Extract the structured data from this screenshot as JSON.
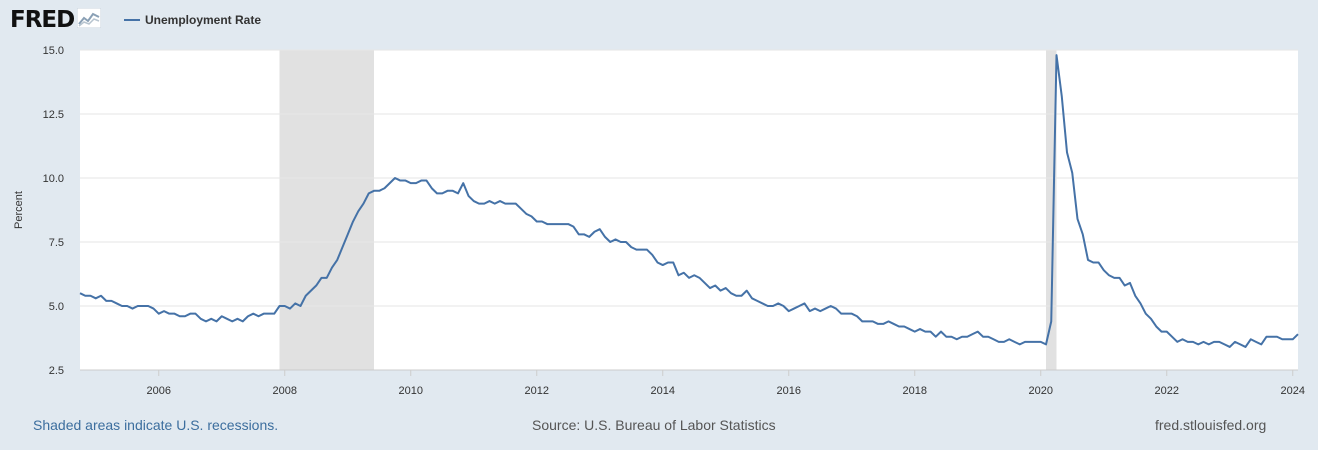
{
  "header": {
    "logo_text": "FRED",
    "logo_icon": "line-chart-icon",
    "legend_label": "Unemployment Rate",
    "series_color": "#4572a7"
  },
  "footer": {
    "recession_note": "Shaded areas indicate U.S. recessions.",
    "source": "Source: U.S. Bureau of Labor Statistics",
    "site": "fred.stlouisfed.org"
  },
  "chart_data": {
    "type": "line",
    "title": "",
    "xlabel": "",
    "ylabel": "Percent",
    "ylim": [
      2.5,
      15.0
    ],
    "yticks": [
      "15.0",
      "12.5",
      "10.0",
      "7.5",
      "5.0",
      "2.5"
    ],
    "xticks": [
      "2006",
      "2008",
      "2010",
      "2012",
      "2014",
      "2016",
      "2018",
      "2020",
      "2022",
      "2024"
    ],
    "xlim": [
      "2004-10",
      "2024-02"
    ],
    "grid": true,
    "legend": "top-left",
    "recessions": [
      [
        "2007-12",
        "2009-06"
      ],
      [
        "2020-02",
        "2020-04"
      ]
    ],
    "series": [
      {
        "name": "Unemployment Rate",
        "color": "#4572a7",
        "start": "2004-10",
        "frequency": "monthly",
        "values": [
          5.5,
          5.4,
          5.4,
          5.3,
          5.4,
          5.2,
          5.2,
          5.1,
          5.0,
          5.0,
          4.9,
          5.0,
          5.0,
          5.0,
          4.9,
          4.7,
          4.8,
          4.7,
          4.7,
          4.6,
          4.6,
          4.7,
          4.7,
          4.5,
          4.4,
          4.5,
          4.4,
          4.6,
          4.5,
          4.4,
          4.5,
          4.4,
          4.6,
          4.7,
          4.6,
          4.7,
          4.7,
          4.7,
          5.0,
          5.0,
          4.9,
          5.1,
          5.0,
          5.4,
          5.6,
          5.8,
          6.1,
          6.1,
          6.5,
          6.8,
          7.3,
          7.8,
          8.3,
          8.7,
          9.0,
          9.4,
          9.5,
          9.5,
          9.6,
          9.8,
          10.0,
          9.9,
          9.9,
          9.8,
          9.8,
          9.9,
          9.9,
          9.6,
          9.4,
          9.4,
          9.5,
          9.5,
          9.4,
          9.8,
          9.3,
          9.1,
          9.0,
          9.0,
          9.1,
          9.0,
          9.1,
          9.0,
          9.0,
          9.0,
          8.8,
          8.6,
          8.5,
          8.3,
          8.3,
          8.2,
          8.2,
          8.2,
          8.2,
          8.2,
          8.1,
          7.8,
          7.8,
          7.7,
          7.9,
          8.0,
          7.7,
          7.5,
          7.6,
          7.5,
          7.5,
          7.3,
          7.2,
          7.2,
          7.2,
          7.0,
          6.7,
          6.6,
          6.7,
          6.7,
          6.2,
          6.3,
          6.1,
          6.2,
          6.1,
          5.9,
          5.7,
          5.8,
          5.6,
          5.7,
          5.5,
          5.4,
          5.4,
          5.6,
          5.3,
          5.2,
          5.1,
          5.0,
          5.0,
          5.1,
          5.0,
          4.8,
          4.9,
          5.0,
          5.1,
          4.8,
          4.9,
          4.8,
          4.9,
          5.0,
          4.9,
          4.7,
          4.7,
          4.7,
          4.6,
          4.4,
          4.4,
          4.4,
          4.3,
          4.3,
          4.4,
          4.3,
          4.2,
          4.2,
          4.1,
          4.0,
          4.1,
          4.0,
          4.0,
          3.8,
          4.0,
          3.8,
          3.8,
          3.7,
          3.8,
          3.8,
          3.9,
          4.0,
          3.8,
          3.8,
          3.7,
          3.6,
          3.6,
          3.7,
          3.6,
          3.5,
          3.6,
          3.6,
          3.6,
          3.6,
          3.5,
          4.4,
          14.8,
          13.2,
          11.0,
          10.2,
          8.4,
          7.8,
          6.8,
          6.7,
          6.7,
          6.4,
          6.2,
          6.1,
          6.1,
          5.8,
          5.9,
          5.4,
          5.1,
          4.7,
          4.5,
          4.2,
          4.0,
          4.0,
          3.8,
          3.6,
          3.7,
          3.6,
          3.6,
          3.5,
          3.6,
          3.5,
          3.6,
          3.6,
          3.5,
          3.4,
          3.6,
          3.5,
          3.4,
          3.7,
          3.6,
          3.5,
          3.8,
          3.8,
          3.8,
          3.7,
          3.7,
          3.7,
          3.9
        ]
      }
    ]
  }
}
